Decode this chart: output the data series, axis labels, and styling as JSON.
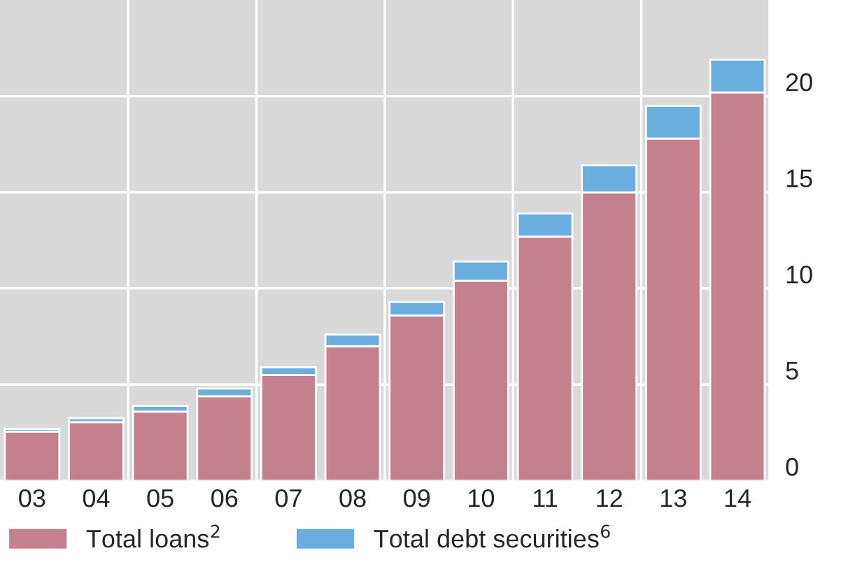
{
  "chart_data": {
    "type": "bar",
    "stacked": true,
    "categories": [
      "03",
      "04",
      "05",
      "06",
      "07",
      "08",
      "09",
      "10",
      "11",
      "12",
      "13",
      "14"
    ],
    "series": [
      {
        "name": "Total loans$^{2}$",
        "color": "#c4808f",
        "values": [
          2.55,
          3.05,
          3.6,
          4.4,
          5.5,
          7.0,
          8.6,
          10.4,
          12.7,
          15.0,
          17.8,
          20.2
        ]
      },
      {
        "name": "Total debt securities$^{6}$",
        "color": "#6aaee0",
        "values": [
          0.15,
          0.2,
          0.3,
          0.4,
          0.4,
          0.6,
          0.7,
          1.0,
          1.2,
          1.4,
          1.7,
          1.7
        ]
      }
    ],
    "ylim": [
      0,
      25
    ],
    "yticks": [
      0,
      5,
      10,
      15,
      20
    ],
    "grid": true,
    "legend": "bottom"
  }
}
